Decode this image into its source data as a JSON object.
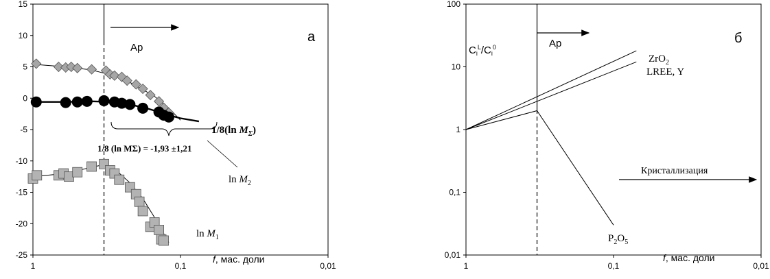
{
  "chart_data": [
    {
      "type": "scatter",
      "panel_label": "а",
      "x_scale": "log",
      "x_reversed": true,
      "xlim": [
        1,
        0.01
      ],
      "ylim": [
        -25,
        15
      ],
      "yticks": [
        "15",
        "10",
        "5",
        "0",
        "-5",
        "-10",
        "-15",
        "-20",
        "-25"
      ],
      "xticks": [
        "1",
        "0,1",
        "0,01"
      ],
      "xlabel_italic": "f",
      "xlabel_rest": ", мас. доли",
      "ap_label": "Ap",
      "ap_x": 0.33,
      "annotation": "1/8 (ln MΣ) = -1,93 ±1,21",
      "series": [
        {
          "name": "ln M2",
          "marker": "diamond",
          "color": "#a6a6a6",
          "x": [
            0.95,
            0.67,
            0.6,
            0.55,
            0.5,
            0.4,
            0.32,
            0.3,
            0.28,
            0.25,
            0.23,
            0.2,
            0.18,
            0.16,
            0.14,
            0.13,
            0.12
          ],
          "y": [
            5.5,
            5.0,
            4.9,
            5.0,
            4.8,
            4.6,
            4.4,
            3.8,
            3.6,
            3.4,
            2.8,
            2.2,
            1.5,
            0.5,
            -0.5,
            -1.5,
            -2.3
          ],
          "trend_x": [
            1.0,
            0.6,
            0.4,
            0.33,
            0.25,
            0.2,
            0.15,
            0.12,
            0.1
          ],
          "trend_y": [
            5.4,
            5.0,
            4.5,
            4.0,
            3.2,
            2.0,
            0.3,
            -1.6,
            -3.5
          ]
        },
        {
          "name": "1/8(ln MΣ)",
          "marker": "circle",
          "color": "#000000",
          "x": [
            0.95,
            0.6,
            0.5,
            0.43,
            0.33,
            0.28,
            0.25,
            0.22,
            0.18,
            0.14,
            0.13,
            0.12
          ],
          "y": [
            -0.6,
            -0.7,
            -0.6,
            -0.5,
            -0.4,
            -0.6,
            -0.8,
            -1.0,
            -1.6,
            -2.2,
            -2.7,
            -3.0
          ],
          "trend_x": [
            1.0,
            0.6,
            0.4,
            0.3,
            0.22,
            0.17,
            0.14,
            0.12,
            0.1,
            0.075
          ],
          "trend_y": [
            -0.6,
            -0.6,
            -0.5,
            -0.6,
            -1.0,
            -1.6,
            -2.2,
            -2.7,
            -3.2,
            -3.7
          ]
        },
        {
          "name": "ln M1",
          "marker": "square",
          "color": "#b3b3b3",
          "x": [
            1.0,
            0.94,
            0.67,
            0.62,
            0.57,
            0.5,
            0.4,
            0.33,
            0.3,
            0.28,
            0.26,
            0.22,
            0.2,
            0.19,
            0.18,
            0.16,
            0.15,
            0.14,
            0.135,
            0.13
          ],
          "y": [
            -12.8,
            -12.3,
            -12.3,
            -12.0,
            -12.5,
            -11.8,
            -10.9,
            -10.5,
            -11.5,
            -12.0,
            -13.0,
            -14.2,
            -15.3,
            -16.5,
            -18.0,
            -20.5,
            -19.8,
            -21.0,
            -22.5,
            -22.7
          ],
          "trend_x": [
            1.0,
            0.6,
            0.4,
            0.33,
            0.27,
            0.22,
            0.18,
            0.15,
            0.12
          ],
          "trend_y": [
            -12.5,
            -12.0,
            -11.0,
            -10.6,
            -11.6,
            -13.5,
            -16.0,
            -19.0,
            -23.0
          ]
        }
      ],
      "labels": [
        {
          "pre": "ln ",
          "italic": "M",
          "sub": "2",
          "post": "",
          "bold": false
        },
        {
          "pre": "1/8(ln ",
          "italic": "M",
          "sub": "Σ",
          "post": ")",
          "bold": true
        },
        {
          "pre": "ln ",
          "italic": "M",
          "sub": "1",
          "post": "",
          "bold": false
        }
      ]
    },
    {
      "type": "line",
      "panel_label": "б",
      "x_scale": "log",
      "x_reversed": true,
      "y_scale": "log",
      "xlim": [
        1,
        0.01
      ],
      "ylim": [
        0.01,
        100
      ],
      "yticks": [
        "100",
        "10",
        "1",
        "0,1",
        "0,01"
      ],
      "xticks": [
        "1",
        "0,1",
        "0,01"
      ],
      "xlabel_italic": "f",
      "xlabel_rest": ", мас. доли",
      "ylabel": "Ci/Ci",
      "ylabel_sup1": "L",
      "ylabel_sup2": "0",
      "ap_label": "Ap",
      "ap_x": 0.33,
      "crystallization_label": "Кристаллизация",
      "series": [
        {
          "name": "ZrO2",
          "x": [
            1,
            0.07
          ],
          "y": [
            1,
            18
          ]
        },
        {
          "name": "LREE, Y",
          "x": [
            1,
            0.07
          ],
          "y": [
            1,
            12
          ]
        },
        {
          "name": "P2O5",
          "x": [
            1,
            0.33,
            0.1
          ],
          "y": [
            1,
            2,
            0.03
          ]
        }
      ],
      "labels": [
        {
          "pre": "ZrO",
          "sub": "2",
          "post": ""
        },
        {
          "pre": "LREE,  Y",
          "sub": "",
          "post": ""
        },
        {
          "pre": "P",
          "sub": "2",
          "post": "O",
          "sub2": "5"
        }
      ]
    }
  ]
}
